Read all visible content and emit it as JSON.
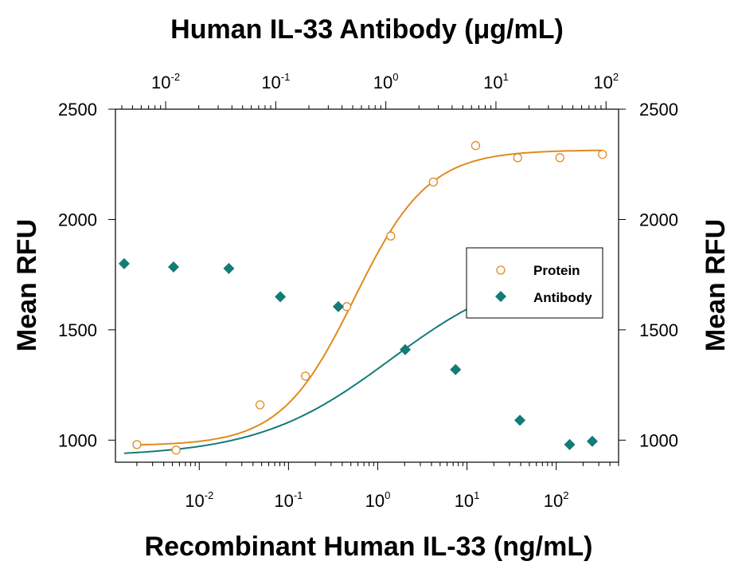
{
  "chart_data": {
    "type": "scatter",
    "title": "",
    "top_axis": {
      "label": "Human IL-33 Antibody (μg/mL)",
      "scale": "log",
      "lim": [
        0.0035,
        130
      ],
      "tick_labels": [
        {
          "base": "10",
          "exp": "-2"
        },
        {
          "base": "10",
          "exp": "-1"
        },
        {
          "base": "10",
          "exp": "0"
        },
        {
          "base": "10",
          "exp": "1"
        },
        {
          "base": "10",
          "exp": "2"
        }
      ],
      "tick_values": [
        0.01,
        0.1,
        1,
        10,
        100
      ]
    },
    "bottom_axis": {
      "label": "Recombinant Human IL-33 (ng/mL)",
      "scale": "log",
      "lim": [
        0.00115,
        500
      ],
      "tick_labels": [
        {
          "base": "10",
          "exp": "-2"
        },
        {
          "base": "10",
          "exp": "-1"
        },
        {
          "base": "10",
          "exp": "0"
        },
        {
          "base": "10",
          "exp": "1"
        },
        {
          "base": "10",
          "exp": "2"
        }
      ],
      "tick_values": [
        0.01,
        0.1,
        1,
        10,
        100
      ]
    },
    "left_axis": {
      "label": "Mean RFU",
      "lim": [
        900,
        2500
      ],
      "ticks": [
        "1000",
        "1500",
        "2000",
        "2500"
      ],
      "tick_values": [
        1000,
        1500,
        2000,
        2500
      ]
    },
    "right_axis": {
      "label": "Mean RFU",
      "ticks": [
        "1000",
        "1500",
        "2000",
        "2500"
      ],
      "tick_values": [
        1000,
        1500,
        2000,
        2500
      ]
    },
    "legend": {
      "position": "right-center"
    },
    "series": [
      {
        "name": "Protein",
        "axis": "bottom",
        "color": "#E08A1E",
        "marker": "open-circle",
        "x": [
          0.002,
          0.0055,
          0.048,
          0.155,
          0.45,
          1.4,
          4.2,
          12.5,
          37,
          110,
          330
        ],
        "y": [
          980,
          955,
          1160,
          1290,
          1605,
          1925,
          2170,
          2335,
          2280,
          2280,
          2295
        ],
        "fit": {
          "model": "4PL",
          "bottom": 975,
          "top": 2315,
          "ec50": 0.55,
          "hill": 1.05
        }
      },
      {
        "name": "Antibody",
        "axis": "top",
        "color": "#137B78",
        "marker": "filled-diamond",
        "x": [
          0.0042,
          0.0118,
          0.0375,
          0.11,
          0.37,
          1.5,
          4.3,
          16.5,
          46.7,
          75
        ],
        "y": [
          1800,
          1785,
          1778,
          1650,
          1605,
          1410,
          1320,
          1090,
          980,
          995
        ],
        "fit": {
          "model": "4PL",
          "bottom": 925,
          "top": 1805,
          "ec50": 1.1,
          "hill": 0.72
        }
      }
    ]
  }
}
